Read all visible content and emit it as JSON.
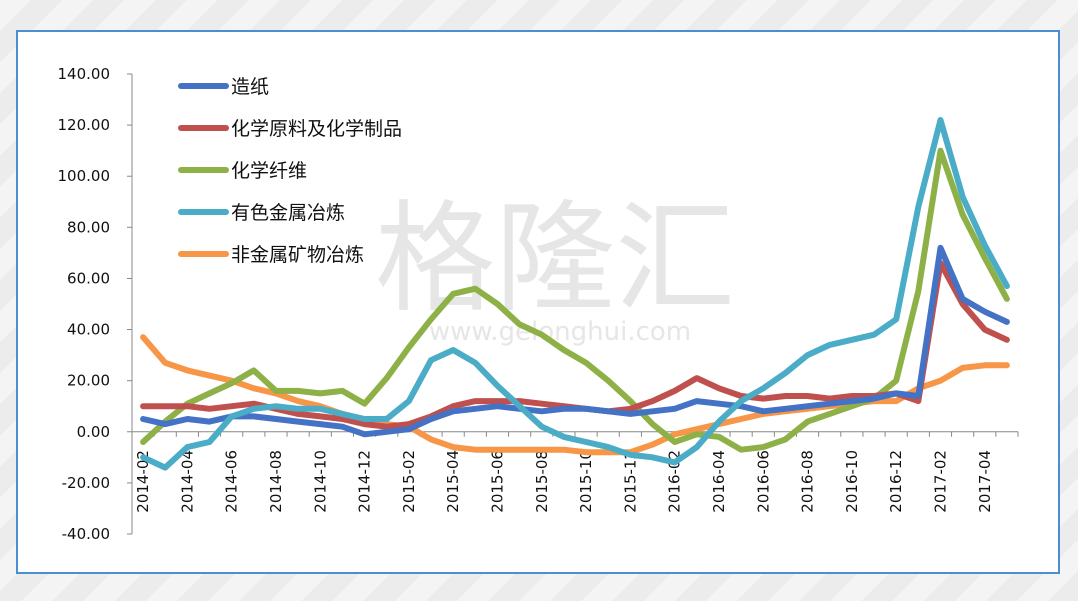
{
  "watermark": {
    "main": "格隆汇",
    "sub": "www.gelonghui.com"
  },
  "chart_data": {
    "type": "line",
    "title": "",
    "xlabel": "",
    "ylabel": "",
    "ylim": [
      -40,
      140
    ],
    "yticks": [
      "140.00",
      "120.00",
      "100.00",
      "80.00",
      "60.00",
      "40.00",
      "20.00",
      "0.00",
      "-20.00",
      "-40.00"
    ],
    "x": [
      "2014-02",
      "2014-03",
      "2014-04",
      "2014-05",
      "2014-06",
      "2014-07",
      "2014-08",
      "2014-09",
      "2014-10",
      "2014-11",
      "2014-12",
      "2015-01",
      "2015-02",
      "2015-03",
      "2015-04",
      "2015-05",
      "2015-06",
      "2015-07",
      "2015-08",
      "2015-09",
      "2015-10",
      "2015-11",
      "2015-12",
      "2016-01",
      "2016-02",
      "2016-03",
      "2016-04",
      "2016-05",
      "2016-06",
      "2016-07",
      "2016-08",
      "2016-09",
      "2016-10",
      "2016-11",
      "2016-12",
      "2017-01",
      "2017-02",
      "2017-03",
      "2017-04",
      "2017-05"
    ],
    "x_tick_labels": [
      "2014-02",
      "2014-04",
      "2014-06",
      "2014-08",
      "2014-10",
      "2014-12",
      "2015-02",
      "2015-04",
      "2015-06",
      "2015-08",
      "2015-10",
      "2015-12",
      "2016-02",
      "2016-04",
      "2016-06",
      "2016-08",
      "2016-10",
      "2016-12",
      "2017-02",
      "2017-04"
    ],
    "legend_position": "top-left",
    "grid": false,
    "series": [
      {
        "name": "造纸",
        "color": "#4472c4",
        "values": [
          5,
          3,
          5,
          4,
          6,
          6,
          5,
          4,
          3,
          2,
          -1,
          0,
          1,
          5,
          8,
          9,
          10,
          9,
          8,
          9,
          9,
          8,
          7,
          8,
          9,
          12,
          11,
          10,
          8,
          9,
          10,
          11,
          12,
          13,
          15,
          14,
          72,
          52,
          47,
          43
        ]
      },
      {
        "name": "化学原料及化学制品",
        "color": "#c0504d",
        "values": [
          10,
          10,
          10,
          9,
          10,
          11,
          9,
          7,
          6,
          5,
          3,
          2,
          3,
          6,
          10,
          12,
          12,
          12,
          11,
          10,
          9,
          8,
          9,
          12,
          16,
          21,
          17,
          14,
          13,
          14,
          14,
          13,
          14,
          14,
          15,
          12,
          66,
          50,
          40,
          36
        ]
      },
      {
        "name": "化学纤维",
        "color": "#8db146",
        "values": [
          -4,
          4,
          11,
          15,
          19,
          24,
          16,
          16,
          15,
          16,
          11,
          21,
          33,
          44,
          54,
          56,
          50,
          42,
          38,
          32,
          27,
          20,
          12,
          3,
          -4,
          -1,
          -2,
          -7,
          -6,
          -3,
          4,
          7,
          10,
          13,
          20,
          55,
          110,
          85,
          68,
          52
        ]
      },
      {
        "name": "有色金属冶炼",
        "color": "#4aacc6",
        "values": [
          -10,
          -14,
          -6,
          -4,
          6,
          9,
          10,
          9,
          9,
          7,
          5,
          5,
          12,
          28,
          32,
          27,
          18,
          10,
          2,
          -2,
          -4,
          -6,
          -9,
          -10,
          -12,
          -6,
          4,
          12,
          17,
          23,
          30,
          34,
          36,
          38,
          44,
          88,
          122,
          92,
          73,
          57
        ]
      },
      {
        "name": "非金属矿物冶炼",
        "color": "#f79646",
        "values": [
          37,
          27,
          24,
          22,
          20,
          17,
          15,
          12,
          10,
          7,
          4,
          3,
          2,
          -3,
          -6,
          -7,
          -7,
          -7,
          -7,
          -7,
          -8,
          -8,
          -8,
          -5,
          -1,
          1,
          3,
          5,
          7,
          8,
          9,
          10,
          11,
          12,
          12,
          17,
          20,
          25,
          26,
          26
        ]
      }
    ]
  }
}
